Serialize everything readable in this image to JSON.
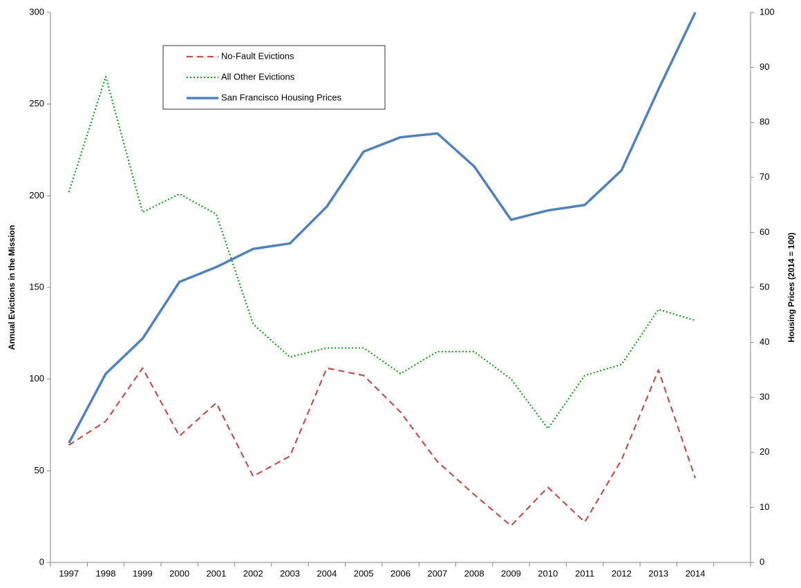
{
  "chart_data": {
    "type": "line",
    "y_label": "Annual Evictions in the Mission",
    "y2_label": "Housing Prices (2014 = 100)",
    "categories": [
      "1997",
      "1998",
      "1999",
      "2000",
      "2001",
      "2002",
      "2003",
      "2004",
      "2005",
      "2006",
      "2007",
      "2008",
      "2009",
      "2010",
      "2011",
      "2012",
      "2013",
      "2014",
      null
    ],
    "series": [
      {
        "name": "No-Fault Evictions",
        "color": "#c0504d",
        "dash": "dashed",
        "values": [
          64,
          77,
          106,
          69,
          87,
          47,
          58,
          106,
          102,
          82,
          55,
          37,
          20,
          41,
          22,
          56,
          105,
          46,
          null
        ]
      },
      {
        "name": "All Other Evictions",
        "color": "#16a016",
        "dash": "dotted",
        "values": [
          202,
          265,
          191,
          201,
          190,
          130,
          112,
          117,
          117,
          103,
          115,
          115,
          100,
          73,
          102,
          108,
          138,
          132,
          null
        ]
      },
      {
        "name": "San Francisco Housing Prices",
        "color": "#4f81bd",
        "dash": "solid",
        "axis": "y2",
        "values": [
          21.7,
          34.3,
          40.7,
          51,
          53.7,
          57,
          58,
          64.7,
          74.7,
          77.3,
          78,
          72,
          62.3,
          64,
          65,
          71.3,
          86,
          100,
          null
        ]
      }
    ],
    "ylim": [
      0,
      300
    ],
    "yticks": [
      0,
      50,
      100,
      150,
      200,
      250,
      300
    ],
    "y2lim": [
      0,
      100
    ],
    "y2ticks": [
      0,
      10,
      20,
      30,
      40,
      50,
      60,
      70,
      80,
      90,
      100
    ],
    "grid": false,
    "legend": "top-left"
  }
}
